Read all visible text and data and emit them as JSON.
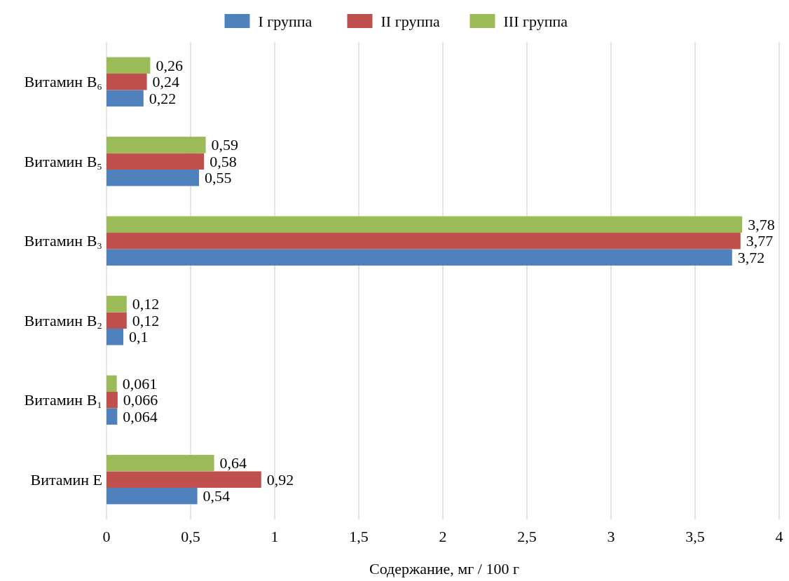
{
  "chart_data": {
    "type": "bar",
    "orientation": "horizontal",
    "xlabel": "Содержание, мг / 100 г",
    "categories": [
      "Витамин B₆",
      "Витамин B₅",
      "Витамин B₃",
      "Витамин B₂",
      "Витамин B₁",
      "Витамин E"
    ],
    "series": [
      {
        "name": "I группа",
        "color": "#4f81bd",
        "values": [
          0.22,
          0.55,
          3.72,
          0.1,
          0.064,
          0.54
        ],
        "value_labels": [
          "0,22",
          "0,55",
          "3,72",
          "0,1",
          "0,064",
          "0,54"
        ]
      },
      {
        "name": "II группа",
        "color": "#c0504d",
        "values": [
          0.24,
          0.58,
          3.77,
          0.12,
          0.066,
          0.92
        ],
        "value_labels": [
          "0,24",
          "0,58",
          "3,77",
          "0,12",
          "0,066",
          "0,92"
        ]
      },
      {
        "name": "III группа",
        "color": "#9bbb59",
        "values": [
          0.26,
          0.59,
          3.78,
          0.12,
          0.061,
          0.64
        ],
        "value_labels": [
          "0,26",
          "0,59",
          "3,78",
          "0,12",
          "0,061",
          "0,64"
        ]
      }
    ],
    "xlim": [
      0,
      4
    ],
    "xticks": [
      0,
      {
        "value": 0.5,
        "label": "0,5"
      },
      1,
      {
        "value": 1.5,
        "label": "1,5"
      },
      2,
      {
        "value": 2.5,
        "label": "2,5"
      },
      3,
      {
        "value": 3.5,
        "label": "3,5"
      },
      4
    ],
    "grid": "x",
    "legend": "top"
  }
}
